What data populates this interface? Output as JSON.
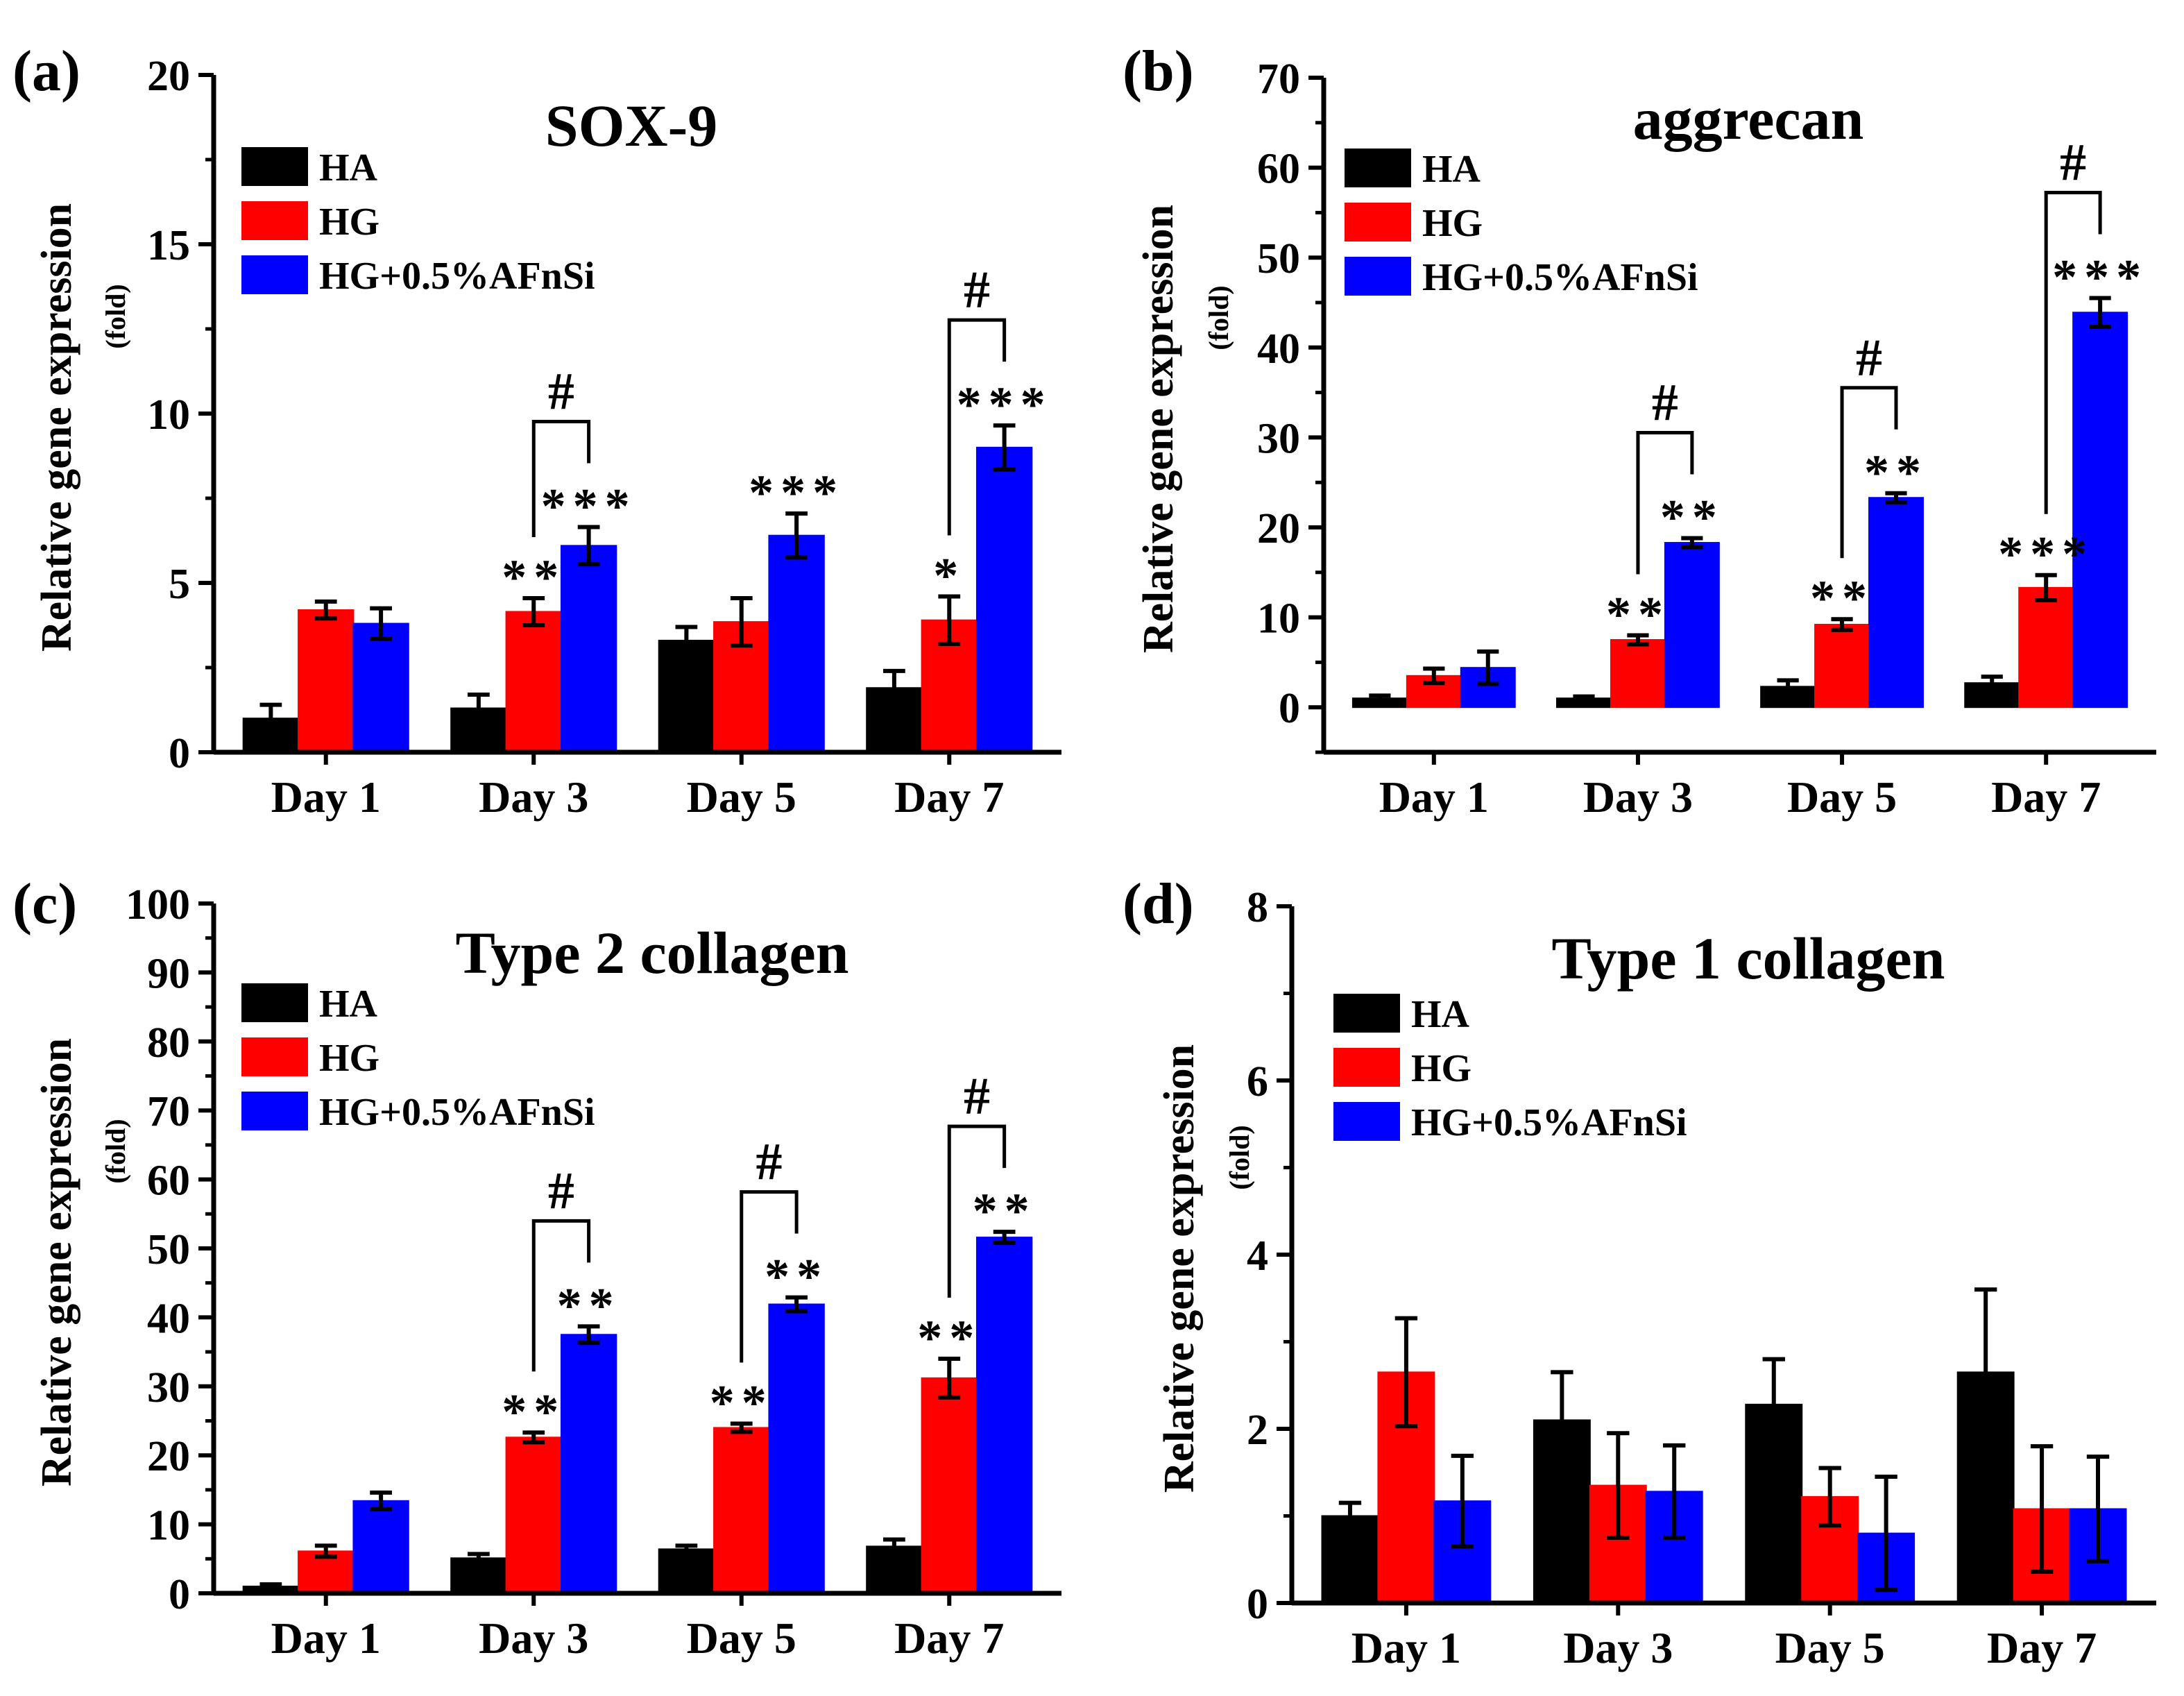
{
  "colors": {
    "HA": "#000000",
    "HG": "#ff0000",
    "HG+0.5%AFnSi": "#0000ff"
  },
  "chart_data": [
    {
      "type": "bar",
      "panel_label": "(a)",
      "title": "SOX-9",
      "ylabel": "Relative gene expression",
      "ylabel_unit": "(fold)",
      "ylim": [
        0,
        20
      ],
      "yticks": [
        "0",
        "5",
        "10",
        "15",
        "20"
      ],
      "categories": [
        "Day 1",
        "Day 3",
        "Day 5",
        "Day 7"
      ],
      "legend": {
        "position": "top-left",
        "entries": [
          "HA",
          "HG",
          "HG+0.5%AFnSi"
        ]
      },
      "series": [
        {
          "name": "HA",
          "values": [
            1.0,
            1.3,
            3.3,
            1.9
          ],
          "errors": [
            0.4,
            0.4,
            0.4,
            0.5
          ]
        },
        {
          "name": "HG",
          "values": [
            4.2,
            4.15,
            3.85,
            3.9
          ],
          "errors": [
            0.25,
            0.4,
            0.7,
            0.7
          ]
        },
        {
          "name": "HG+0.5%AFnSi",
          "values": [
            3.8,
            6.1,
            6.4,
            9.0
          ],
          "errors": [
            0.45,
            0.55,
            0.65,
            0.65
          ]
        }
      ],
      "annotations": [
        {
          "text": "**",
          "category": "Day 3",
          "series": "HG"
        },
        {
          "text": "***",
          "category": "Day 3",
          "series": "HG+0.5%AFnSi"
        },
        {
          "text": "***",
          "category": "Day 5",
          "series": "HG+0.5%AFnSi"
        },
        {
          "text": "*",
          "category": "Day 7",
          "series": "HG"
        },
        {
          "text": "***",
          "category": "Day 7",
          "series": "HG+0.5%AFnSi"
        }
      ],
      "brackets": [
        {
          "text": "#",
          "category": "Day 3",
          "from": "HG",
          "to": "HG+0.5%AFnSi"
        },
        {
          "text": "#",
          "category": "Day 7",
          "from": "HG",
          "to": "HG+0.5%AFnSi"
        }
      ]
    },
    {
      "type": "bar",
      "panel_label": "(b)",
      "title": "aggrecan",
      "ylabel": "Relative gene expression",
      "ylabel_unit": "(fold)",
      "ylim": [
        -5,
        70
      ],
      "yticks": [
        "0",
        "10",
        "20",
        "30",
        "40",
        "50",
        "60",
        "70"
      ],
      "categories": [
        "Day 1",
        "Day 3",
        "Day 5",
        "Day 7"
      ],
      "legend": {
        "position": "top-left",
        "entries": [
          "HA",
          "HG",
          "HG+0.5%AFnSi"
        ]
      },
      "series": [
        {
          "name": "HA",
          "values": [
            1.0,
            1.0,
            2.3,
            2.7
          ],
          "errors": [
            0.3,
            0.2,
            0.7,
            0.7
          ]
        },
        {
          "name": "HG",
          "values": [
            3.5,
            7.5,
            9.2,
            13.3
          ],
          "errors": [
            0.8,
            0.5,
            0.6,
            1.4
          ]
        },
        {
          "name": "HG+0.5%AFnSi",
          "values": [
            4.4,
            18.3,
            23.3,
            43.9
          ],
          "errors": [
            1.8,
            0.5,
            0.5,
            1.6
          ]
        }
      ],
      "annotations": [
        {
          "text": "**",
          "category": "Day 3",
          "series": "HG"
        },
        {
          "text": "**",
          "category": "Day 3",
          "series": "HG+0.5%AFnSi"
        },
        {
          "text": "**",
          "category": "Day 5",
          "series": "HG"
        },
        {
          "text": "**",
          "category": "Day 5",
          "series": "HG+0.5%AFnSi"
        },
        {
          "text": "***",
          "category": "Day 7",
          "series": "HG"
        },
        {
          "text": "***",
          "category": "Day 7",
          "series": "HG+0.5%AFnSi"
        }
      ],
      "brackets": [
        {
          "text": "#",
          "category": "Day 3",
          "from": "HG",
          "to": "HG+0.5%AFnSi"
        },
        {
          "text": "#",
          "category": "Day 5",
          "from": "HG",
          "to": "HG+0.5%AFnSi"
        },
        {
          "text": "#",
          "category": "Day 7",
          "from": "HG",
          "to": "HG+0.5%AFnSi"
        }
      ]
    },
    {
      "type": "bar",
      "panel_label": "(c)",
      "title": "Type 2 collagen",
      "ylabel": "Relative gene expression",
      "ylabel_unit": "(fold)",
      "ylim": [
        0,
        100
      ],
      "yticks": [
        "0",
        "10",
        "20",
        "30",
        "40",
        "50",
        "60",
        "70",
        "80",
        "90",
        "100"
      ],
      "categories": [
        "Day 1",
        "Day 3",
        "Day 5",
        "Day 7"
      ],
      "legend": {
        "position": "top-left",
        "entries": [
          "HA",
          "HG",
          "HG+0.5%AFnSi"
        ]
      },
      "series": [
        {
          "name": "HA",
          "values": [
            1.0,
            5.1,
            6.4,
            6.8
          ],
          "errors": [
            0.3,
            0.6,
            0.5,
            1.0
          ]
        },
        {
          "name": "HG",
          "values": [
            6.1,
            22.6,
            24.0,
            31.2
          ],
          "errors": [
            0.8,
            0.7,
            0.6,
            2.8
          ]
        },
        {
          "name": "HG+0.5%AFnSi",
          "values": [
            13.4,
            37.5,
            41.9,
            51.6
          ],
          "errors": [
            1.2,
            1.2,
            1.0,
            0.8
          ]
        }
      ],
      "annotations": [
        {
          "text": "**",
          "category": "Day 3",
          "series": "HG"
        },
        {
          "text": "**",
          "category": "Day 3",
          "series": "HG+0.5%AFnSi"
        },
        {
          "text": "**",
          "category": "Day 5",
          "series": "HG"
        },
        {
          "text": "**",
          "category": "Day 5",
          "series": "HG+0.5%AFnSi"
        },
        {
          "text": "**",
          "category": "Day 7",
          "series": "HG"
        },
        {
          "text": "**",
          "category": "Day 7",
          "series": "HG+0.5%AFnSi"
        }
      ],
      "brackets": [
        {
          "text": "#",
          "category": "Day 3",
          "from": "HG",
          "to": "HG+0.5%AFnSi"
        },
        {
          "text": "#",
          "category": "Day 5",
          "from": "HG",
          "to": "HG+0.5%AFnSi"
        },
        {
          "text": "#",
          "category": "Day 7",
          "from": "HG",
          "to": "HG+0.5%AFnSi"
        }
      ]
    },
    {
      "type": "bar",
      "panel_label": "(d)",
      "title": "Type 1 collagen",
      "ylabel": "Relative gene expression",
      "ylabel_unit": "(fold)",
      "ylim": [
        0,
        8
      ],
      "yticks": [
        "0",
        "2",
        "4",
        "6",
        "8"
      ],
      "categories": [
        "Day 1",
        "Day 3",
        "Day 5",
        "Day 7"
      ],
      "legend": {
        "position": "top-left",
        "entries": [
          "HA",
          "HG",
          "HG+0.5%AFnSi"
        ]
      },
      "series": [
        {
          "name": "HA",
          "values": [
            1.0,
            2.1,
            2.28,
            2.65
          ],
          "errors": [
            0.15,
            0.55,
            0.52,
            0.95
          ]
        },
        {
          "name": "HG",
          "values": [
            2.65,
            1.35,
            1.22,
            1.08
          ],
          "errors": [
            0.62,
            0.6,
            0.33,
            0.72
          ]
        },
        {
          "name": "HG+0.5%AFnSi",
          "values": [
            1.17,
            1.28,
            0.8,
            1.08
          ],
          "errors": [
            0.52,
            0.53,
            0.65,
            0.6
          ]
        }
      ],
      "annotations": [],
      "brackets": []
    }
  ]
}
